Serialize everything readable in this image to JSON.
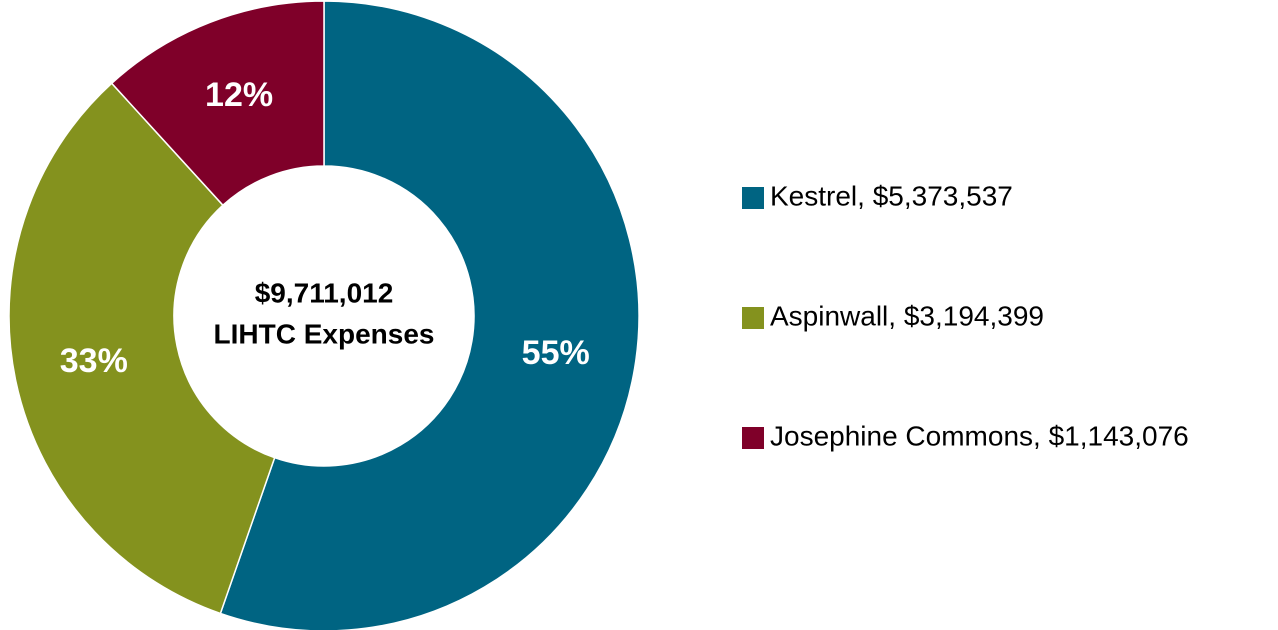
{
  "chart_data": {
    "type": "donut",
    "categories": [
      "Kestrel",
      "Aspinwall",
      "Josephine Commons"
    ],
    "values": [
      5373537,
      3194399,
      1143076
    ],
    "value_labels": [
      "55%",
      "33%",
      "12%"
    ],
    "colors": [
      "#006482",
      "#84921e",
      "#7f0029"
    ],
    "legend_labels": [
      "Kestrel, $5,373,537",
      "Aspinwall, $3,194,399",
      "Josephine Commons, $1,143,076"
    ],
    "center_label": [
      "$9,711,012",
      "LIHTC Expenses"
    ],
    "legend": "right"
  }
}
